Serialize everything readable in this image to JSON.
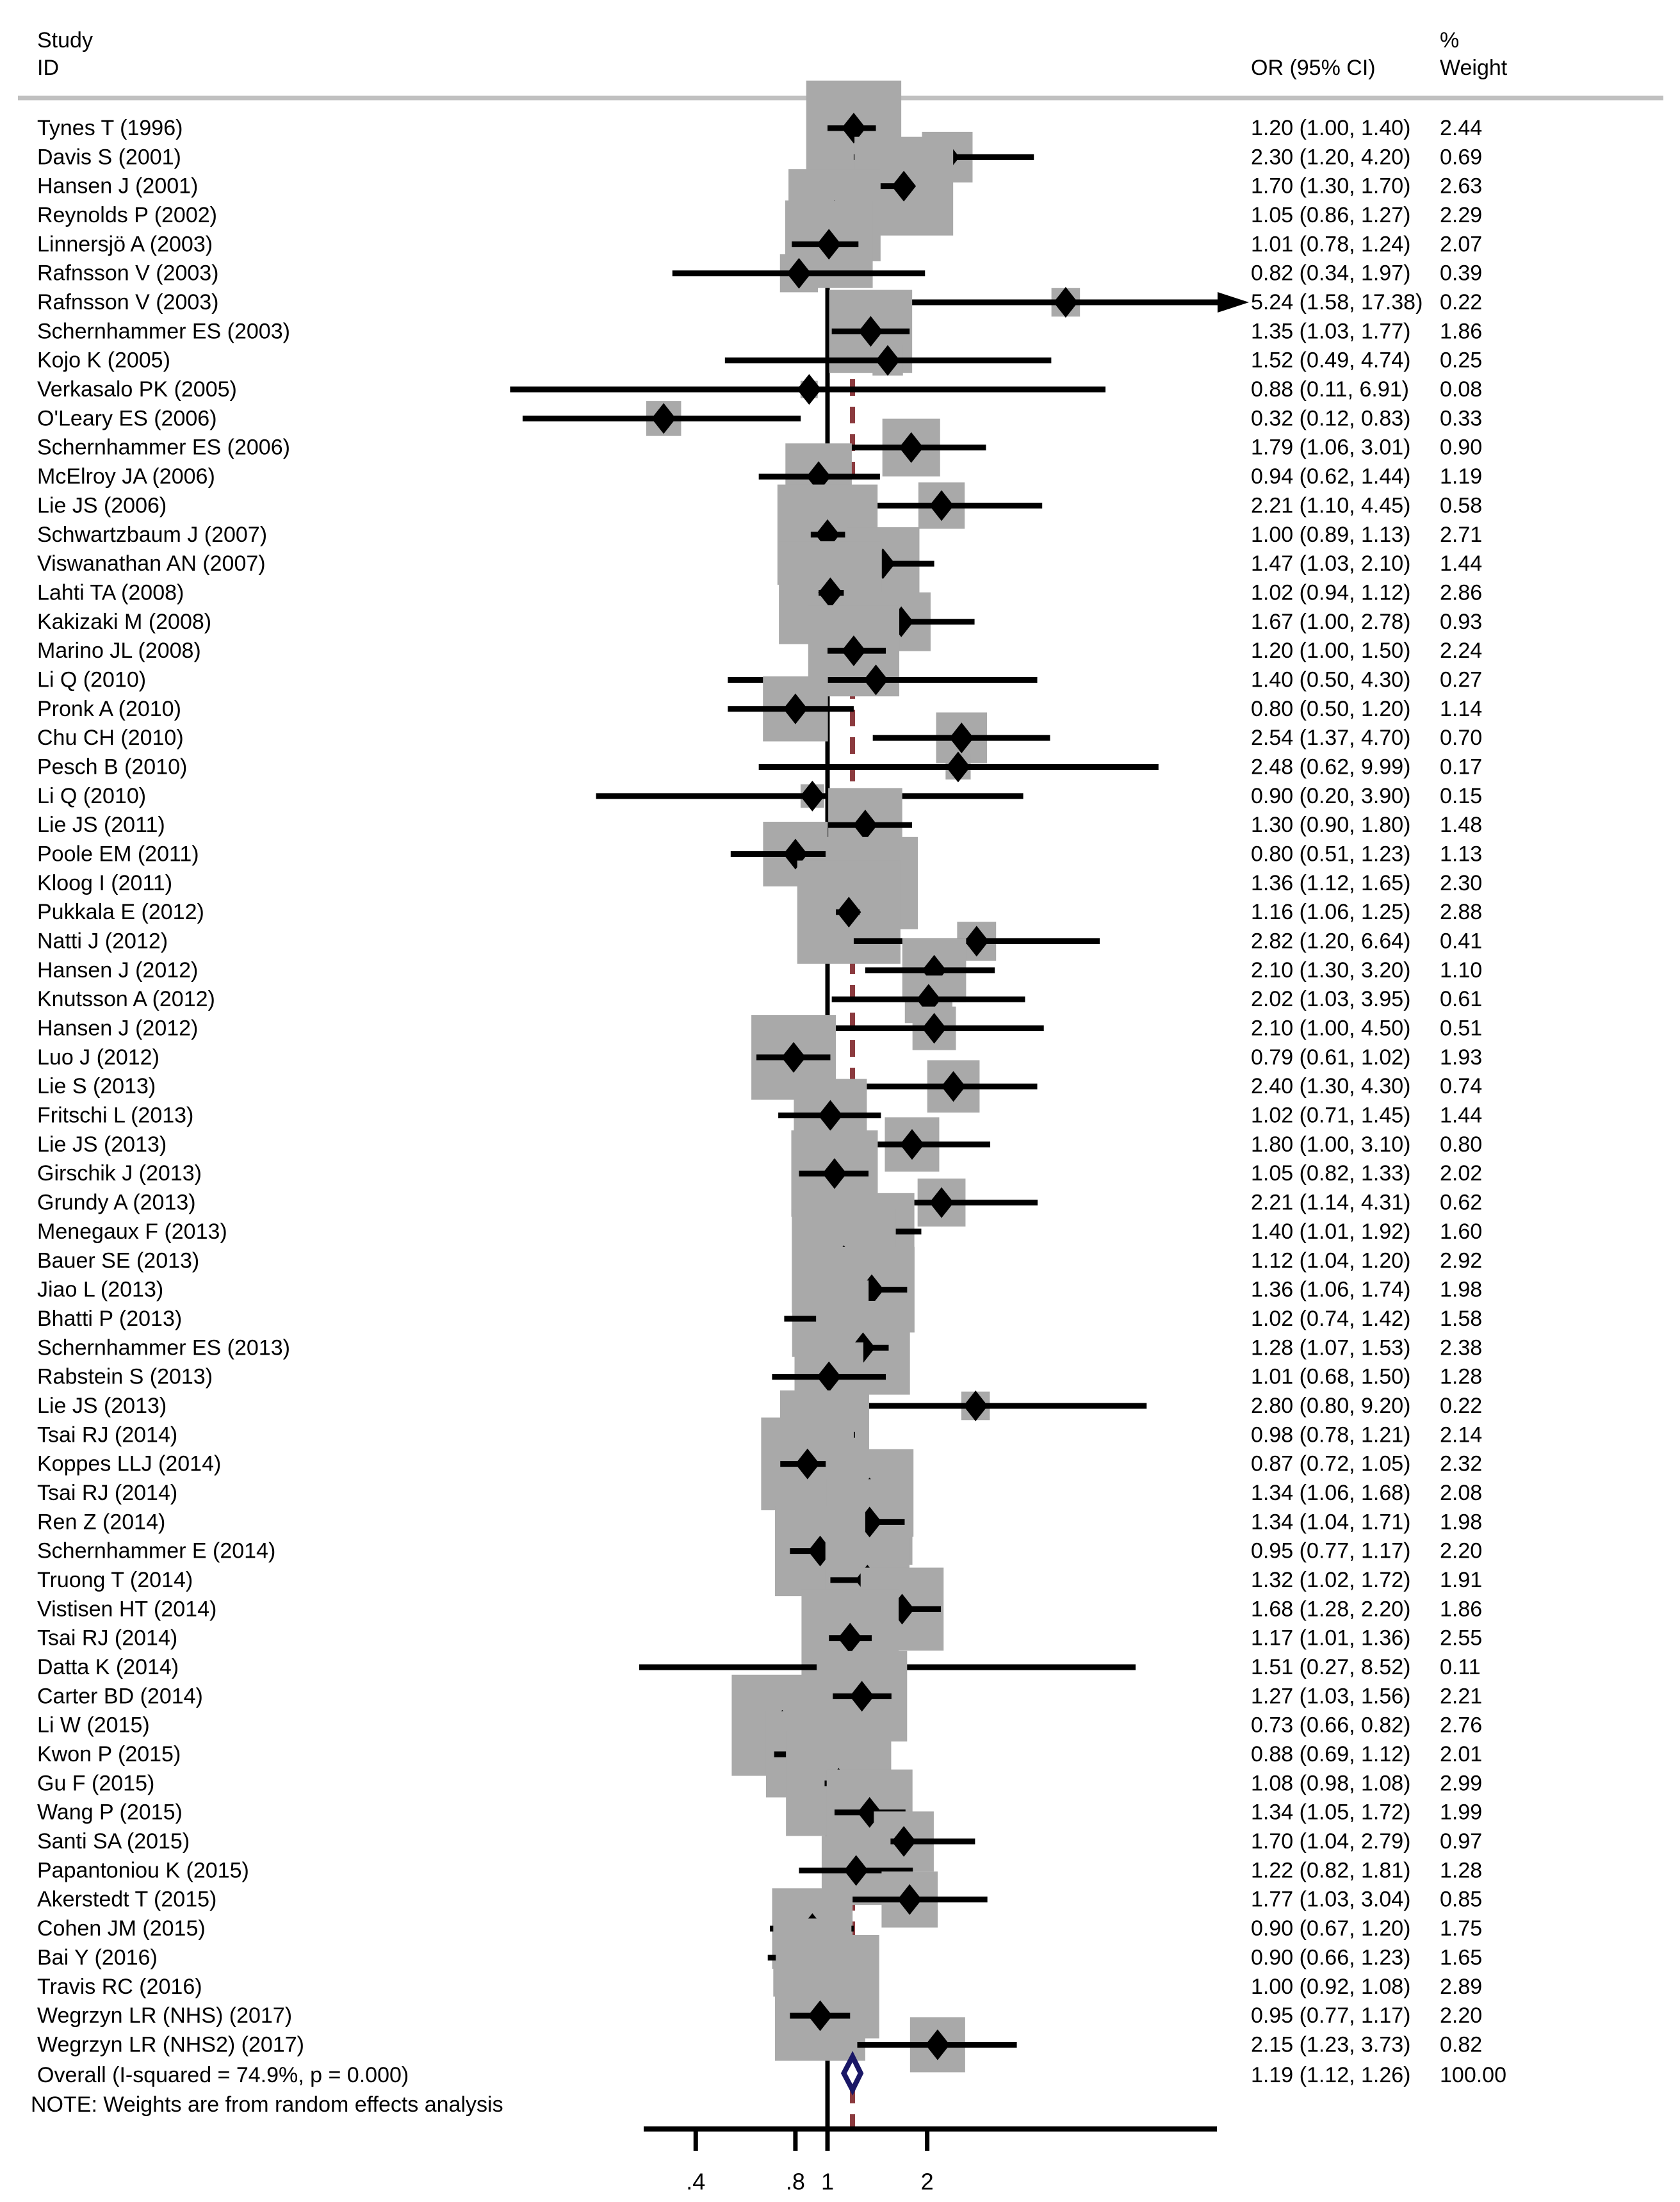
{
  "header": {
    "study_line1": "Study",
    "study_line2": "ID",
    "or_label": "OR (95% CI)",
    "weight_line1": "%",
    "weight_line2": "Weight"
  },
  "note": "NOTE: Weights are from random effects analysis",
  "overall": {
    "label": "Overall  (I-squared = 74.9%, p = 0.000)",
    "or_text": "1.19 (1.12, 1.26)",
    "weight_text": "100.00",
    "or": 1.19,
    "lo": 1.12,
    "hi": 1.26
  },
  "colors": {
    "box": "#a9a9a9",
    "ci": "#000000",
    "null_line": "#000000",
    "overall_dashed": "#8b3a3e",
    "overall_diamond_stroke": "#1a1766",
    "overall_diamond_fill": "#ffffff",
    "separator": "#c0c0c0",
    "text": "#000000"
  },
  "chart_data": {
    "type": "forest",
    "x_axis": {
      "scale": "log",
      "ticks": [
        0.4,
        0.8,
        1,
        2
      ],
      "tick_labels": [
        ".4",
        ".8",
        "1",
        "2"
      ],
      "null_value": 1
    },
    "legend": "none",
    "studies": [
      {
        "label": "Tynes T (1996)",
        "or": 1.2,
        "lo": 1.0,
        "hi": 1.4,
        "weight": 2.44,
        "or_text": "1.20 (1.00, 1.40)",
        "weight_text": "2.44"
      },
      {
        "label": "Davis S (2001)",
        "or": 2.3,
        "lo": 1.2,
        "hi": 4.2,
        "weight": 0.69,
        "or_text": "2.30 (1.20, 4.20)",
        "weight_text": "0.69"
      },
      {
        "label": "Hansen J (2001)",
        "or": 1.7,
        "lo": 1.3,
        "hi": 1.7,
        "weight": 2.63,
        "or_text": "1.70 (1.30, 1.70)",
        "weight_text": "2.63"
      },
      {
        "label": "Reynolds P (2002)",
        "or": 1.05,
        "lo": 0.86,
        "hi": 1.27,
        "weight": 2.29,
        "or_text": "1.05 (0.86, 1.27)",
        "weight_text": "2.29"
      },
      {
        "label": "Linnersjö A (2003)",
        "or": 1.01,
        "lo": 0.78,
        "hi": 1.24,
        "weight": 2.07,
        "or_text": "1.01 (0.78, 1.24)",
        "weight_text": "2.07"
      },
      {
        "label": "Rafnsson V (2003)",
        "or": 0.82,
        "lo": 0.34,
        "hi": 1.97,
        "weight": 0.39,
        "or_text": "0.82 (0.34, 1.97)",
        "weight_text": "0.39"
      },
      {
        "label": "Rafnsson V (2003)",
        "or": 5.24,
        "lo": 1.58,
        "hi": 17.38,
        "weight": 0.22,
        "or_text": "5.24 (1.58, 17.38)",
        "weight_text": "0.22",
        "arrow": true
      },
      {
        "label": "Schernhammer ES (2003)",
        "or": 1.35,
        "lo": 1.03,
        "hi": 1.77,
        "weight": 1.86,
        "or_text": "1.35 (1.03, 1.77)",
        "weight_text": "1.86"
      },
      {
        "label": "Kojo K (2005)",
        "or": 1.52,
        "lo": 0.49,
        "hi": 4.74,
        "weight": 0.25,
        "or_text": "1.52 (0.49, 4.74)",
        "weight_text": "0.25"
      },
      {
        "label": "Verkasalo PK (2005)",
        "or": 0.88,
        "lo": 0.11,
        "hi": 6.91,
        "weight": 0.08,
        "or_text": "0.88 (0.11, 6.91)",
        "weight_text": "0.08"
      },
      {
        "label": "O'Leary ES (2006)",
        "or": 0.32,
        "lo": 0.12,
        "hi": 0.83,
        "weight": 0.33,
        "or_text": "0.32 (0.12, 0.83)",
        "weight_text": "0.33"
      },
      {
        "label": "Schernhammer ES (2006)",
        "or": 1.79,
        "lo": 1.06,
        "hi": 3.01,
        "weight": 0.9,
        "or_text": "1.79 (1.06, 3.01)",
        "weight_text": "0.90"
      },
      {
        "label": "McElroy JA (2006)",
        "or": 0.94,
        "lo": 0.62,
        "hi": 1.44,
        "weight": 1.19,
        "or_text": "0.94 (0.62, 1.44)",
        "weight_text": "1.19"
      },
      {
        "label": "Lie JS (2006)",
        "or": 2.21,
        "lo": 1.1,
        "hi": 4.45,
        "weight": 0.58,
        "or_text": "2.21 (1.10, 4.45)",
        "weight_text": "0.58"
      },
      {
        "label": "Schwartzbaum J (2007)",
        "or": 1.0,
        "lo": 0.89,
        "hi": 1.13,
        "weight": 2.71,
        "or_text": "1.00 (0.89, 1.13)",
        "weight_text": "2.71"
      },
      {
        "label": "Viswanathan AN (2007)",
        "or": 1.47,
        "lo": 1.03,
        "hi": 2.1,
        "weight": 1.44,
        "or_text": "1.47 (1.03, 2.10)",
        "weight_text": "1.44"
      },
      {
        "label": "Lahti TA (2008)",
        "or": 1.02,
        "lo": 0.94,
        "hi": 1.12,
        "weight": 2.86,
        "or_text": "1.02 (0.94, 1.12)",
        "weight_text": "2.86"
      },
      {
        "label": "Kakizaki M (2008)",
        "or": 1.67,
        "lo": 1.0,
        "hi": 2.78,
        "weight": 0.93,
        "or_text": "1.67 (1.00, 2.78)",
        "weight_text": "0.93"
      },
      {
        "label": "Marino JL (2008)",
        "or": 1.2,
        "lo": 1.0,
        "hi": 1.5,
        "weight": 2.24,
        "or_text": "1.20 (1.00, 1.50)",
        "weight_text": "2.24"
      },
      {
        "label": "Li Q (2010)",
        "or": 1.4,
        "lo": 0.5,
        "hi": 4.3,
        "weight": 0.27,
        "or_text": "1.40 (0.50, 4.30)",
        "weight_text": "0.27"
      },
      {
        "label": "Pronk A (2010)",
        "or": 0.8,
        "lo": 0.5,
        "hi": 1.2,
        "weight": 1.14,
        "or_text": "0.80 (0.50, 1.20)",
        "weight_text": "1.14"
      },
      {
        "label": "Chu CH (2010)",
        "or": 2.54,
        "lo": 1.37,
        "hi": 4.7,
        "weight": 0.7,
        "or_text": "2.54 (1.37, 4.70)",
        "weight_text": "0.70"
      },
      {
        "label": "Pesch B (2010)",
        "or": 2.48,
        "lo": 0.62,
        "hi": 9.99,
        "weight": 0.17,
        "or_text": "2.48 (0.62, 9.99)",
        "weight_text": "0.17"
      },
      {
        "label": "Li Q (2010)",
        "or": 0.9,
        "lo": 0.2,
        "hi": 3.9,
        "weight": 0.15,
        "or_text": "0.90 (0.20, 3.90)",
        "weight_text": "0.15"
      },
      {
        "label": "Lie JS (2011)",
        "or": 1.3,
        "lo": 0.9,
        "hi": 1.8,
        "weight": 1.48,
        "or_text": "1.30 (0.90, 1.80)",
        "weight_text": "1.48"
      },
      {
        "label": "Poole EM (2011)",
        "or": 0.8,
        "lo": 0.51,
        "hi": 1.23,
        "weight": 1.13,
        "or_text": "0.80 (0.51, 1.23)",
        "weight_text": "1.13"
      },
      {
        "label": "Kloog I (2011)",
        "or": 1.36,
        "lo": 1.12,
        "hi": 1.65,
        "weight": 2.3,
        "or_text": "1.36 (1.12, 1.65)",
        "weight_text": "2.30"
      },
      {
        "label": "Pukkala E (2012)",
        "or": 1.16,
        "lo": 1.06,
        "hi": 1.25,
        "weight": 2.88,
        "or_text": "1.16 (1.06, 1.25)",
        "weight_text": "2.88"
      },
      {
        "label": "Natti J (2012)",
        "or": 2.82,
        "lo": 1.2,
        "hi": 6.64,
        "weight": 0.41,
        "or_text": "2.82 (1.20, 6.64)",
        "weight_text": "0.41"
      },
      {
        "label": "Hansen J (2012)",
        "or": 2.1,
        "lo": 1.3,
        "hi": 3.2,
        "weight": 1.1,
        "or_text": "2.10 (1.30, 3.20)",
        "weight_text": "1.10"
      },
      {
        "label": "Knutsson A (2012)",
        "or": 2.02,
        "lo": 1.03,
        "hi": 3.95,
        "weight": 0.61,
        "or_text": "2.02 (1.03, 3.95)",
        "weight_text": "0.61"
      },
      {
        "label": "Hansen J (2012)",
        "or": 2.1,
        "lo": 1.0,
        "hi": 4.5,
        "weight": 0.51,
        "or_text": "2.10 (1.00, 4.50)",
        "weight_text": "0.51"
      },
      {
        "label": "Luo J (2012)",
        "or": 0.79,
        "lo": 0.61,
        "hi": 1.02,
        "weight": 1.93,
        "or_text": "0.79 (0.61, 1.02)",
        "weight_text": "1.93"
      },
      {
        "label": "Lie S (2013)",
        "or": 2.4,
        "lo": 1.3,
        "hi": 4.3,
        "weight": 0.74,
        "or_text": "2.40 (1.30, 4.30)",
        "weight_text": "0.74"
      },
      {
        "label": "Fritschi L (2013)",
        "or": 1.02,
        "lo": 0.71,
        "hi": 1.45,
        "weight": 1.44,
        "or_text": "1.02 (0.71, 1.45)",
        "weight_text": "1.44"
      },
      {
        "label": "Lie JS (2013)",
        "or": 1.8,
        "lo": 1.0,
        "hi": 3.1,
        "weight": 0.8,
        "or_text": "1.80 (1.00, 3.10)",
        "weight_text": "0.80"
      },
      {
        "label": "Girschik J (2013)",
        "or": 1.05,
        "lo": 0.82,
        "hi": 1.33,
        "weight": 2.02,
        "or_text": "1.05 (0.82, 1.33)",
        "weight_text": "2.02"
      },
      {
        "label": "Grundy A (2013)",
        "or": 2.21,
        "lo": 1.14,
        "hi": 4.31,
        "weight": 0.62,
        "or_text": "2.21 (1.14, 4.31)",
        "weight_text": "0.62"
      },
      {
        "label": "Menegaux F (2013)",
        "or": 1.4,
        "lo": 1.01,
        "hi": 1.92,
        "weight": 1.6,
        "or_text": "1.40 (1.01, 1.92)",
        "weight_text": "1.60"
      },
      {
        "label": "Bauer SE (2013)",
        "or": 1.12,
        "lo": 1.04,
        "hi": 1.2,
        "weight": 2.92,
        "or_text": "1.12 (1.04, 1.20)",
        "weight_text": "2.92"
      },
      {
        "label": "Jiao L (2013)",
        "or": 1.36,
        "lo": 1.06,
        "hi": 1.74,
        "weight": 1.98,
        "or_text": "1.36 (1.06, 1.74)",
        "weight_text": "1.98"
      },
      {
        "label": "Bhatti P (2013)",
        "or": 1.02,
        "lo": 0.74,
        "hi": 1.42,
        "weight": 1.58,
        "or_text": "1.02 (0.74, 1.42)",
        "weight_text": "1.58"
      },
      {
        "label": "Schernhammer ES (2013)",
        "or": 1.28,
        "lo": 1.07,
        "hi": 1.53,
        "weight": 2.38,
        "or_text": "1.28 (1.07, 1.53)",
        "weight_text": "2.38"
      },
      {
        "label": "Rabstein S (2013)",
        "or": 1.01,
        "lo": 0.68,
        "hi": 1.5,
        "weight": 1.28,
        "or_text": "1.01 (0.68, 1.50)",
        "weight_text": "1.28"
      },
      {
        "label": "Lie JS (2013)",
        "or": 2.8,
        "lo": 0.8,
        "hi": 9.2,
        "weight": 0.22,
        "or_text": "2.80 (0.80, 9.20)",
        "weight_text": "0.22"
      },
      {
        "label": "Tsai RJ (2014)",
        "or": 0.98,
        "lo": 0.78,
        "hi": 1.21,
        "weight": 2.14,
        "or_text": "0.98 (0.78, 1.21)",
        "weight_text": "2.14"
      },
      {
        "label": "Koppes LLJ (2014)",
        "or": 0.87,
        "lo": 0.72,
        "hi": 1.05,
        "weight": 2.32,
        "or_text": "0.87 (0.72, 1.05)",
        "weight_text": "2.32"
      },
      {
        "label": "Tsai RJ (2014)",
        "or": 1.34,
        "lo": 1.06,
        "hi": 1.68,
        "weight": 2.08,
        "or_text": "1.34 (1.06, 1.68)",
        "weight_text": "2.08"
      },
      {
        "label": "Ren Z (2014)",
        "or": 1.34,
        "lo": 1.04,
        "hi": 1.71,
        "weight": 1.98,
        "or_text": "1.34 (1.04, 1.71)",
        "weight_text": "1.98"
      },
      {
        "label": "Schernhammer E (2014)",
        "or": 0.95,
        "lo": 0.77,
        "hi": 1.17,
        "weight": 2.2,
        "or_text": "0.95 (0.77, 1.17)",
        "weight_text": "2.20"
      },
      {
        "label": "Truong T (2014)",
        "or": 1.32,
        "lo": 1.02,
        "hi": 1.72,
        "weight": 1.91,
        "or_text": "1.32 (1.02, 1.72)",
        "weight_text": "1.91"
      },
      {
        "label": "Vistisen HT (2014)",
        "or": 1.68,
        "lo": 1.28,
        "hi": 2.2,
        "weight": 1.86,
        "or_text": "1.68 (1.28, 2.20)",
        "weight_text": "1.86"
      },
      {
        "label": "Tsai RJ (2014)",
        "or": 1.17,
        "lo": 1.01,
        "hi": 1.36,
        "weight": 2.55,
        "or_text": "1.17 (1.01, 1.36)",
        "weight_text": "2.55"
      },
      {
        "label": "Datta K (2014)",
        "or": 1.51,
        "lo": 0.27,
        "hi": 8.52,
        "weight": 0.11,
        "or_text": "1.51 (0.27, 8.52)",
        "weight_text": "0.11"
      },
      {
        "label": "Carter BD (2014)",
        "or": 1.27,
        "lo": 1.03,
        "hi": 1.56,
        "weight": 2.21,
        "or_text": "1.27 (1.03, 1.56)",
        "weight_text": "2.21"
      },
      {
        "label": "Li W (2015)",
        "or": 0.73,
        "lo": 0.66,
        "hi": 0.82,
        "weight": 2.76,
        "or_text": "0.73 (0.66, 0.82)",
        "weight_text": "2.76"
      },
      {
        "label": "Kwon P (2015)",
        "or": 0.88,
        "lo": 0.69,
        "hi": 1.12,
        "weight": 2.01,
        "or_text": "0.88 (0.69, 1.12)",
        "weight_text": "2.01"
      },
      {
        "label": "Gu F (2015)",
        "or": 1.08,
        "lo": 0.98,
        "hi": 1.08,
        "weight": 2.99,
        "or_text": "1.08 (0.98, 1.08)",
        "weight_text": "2.99"
      },
      {
        "label": "Wang P (2015)",
        "or": 1.34,
        "lo": 1.05,
        "hi": 1.72,
        "weight": 1.99,
        "or_text": "1.34 (1.05, 1.72)",
        "weight_text": "1.99"
      },
      {
        "label": "Santi SA (2015)",
        "or": 1.7,
        "lo": 1.04,
        "hi": 2.79,
        "weight": 0.97,
        "or_text": "1.70 (1.04, 2.79)",
        "weight_text": "0.97"
      },
      {
        "label": "Papantoniou K (2015)",
        "or": 1.22,
        "lo": 0.82,
        "hi": 1.81,
        "weight": 1.28,
        "or_text": "1.22 (0.82, 1.81)",
        "weight_text": "1.28"
      },
      {
        "label": "Akerstedt T (2015)",
        "or": 1.77,
        "lo": 1.03,
        "hi": 3.04,
        "weight": 0.85,
        "or_text": "1.77 (1.03, 3.04)",
        "weight_text": "0.85"
      },
      {
        "label": "Cohen JM (2015)",
        "or": 0.9,
        "lo": 0.67,
        "hi": 1.2,
        "weight": 1.75,
        "or_text": "0.90 (0.67, 1.20)",
        "weight_text": "1.75"
      },
      {
        "label": "Bai Y (2016)",
        "or": 0.9,
        "lo": 0.66,
        "hi": 1.23,
        "weight": 1.65,
        "or_text": "0.90 (0.66, 1.23)",
        "weight_text": "1.65"
      },
      {
        "label": "Travis RC (2016)",
        "or": 1.0,
        "lo": 0.92,
        "hi": 1.08,
        "weight": 2.89,
        "or_text": "1.00 (0.92, 1.08)",
        "weight_text": "2.89"
      },
      {
        "label": "Wegrzyn LR (NHS) (2017)",
        "or": 0.95,
        "lo": 0.77,
        "hi": 1.17,
        "weight": 2.2,
        "or_text": "0.95 (0.77, 1.17)",
        "weight_text": "2.20"
      },
      {
        "label": "Wegrzyn LR (NHS2) (2017)",
        "or": 2.15,
        "lo": 1.23,
        "hi": 3.73,
        "weight": 0.82,
        "or_text": "2.15 (1.23, 3.73)",
        "weight_text": "0.82"
      }
    ]
  }
}
